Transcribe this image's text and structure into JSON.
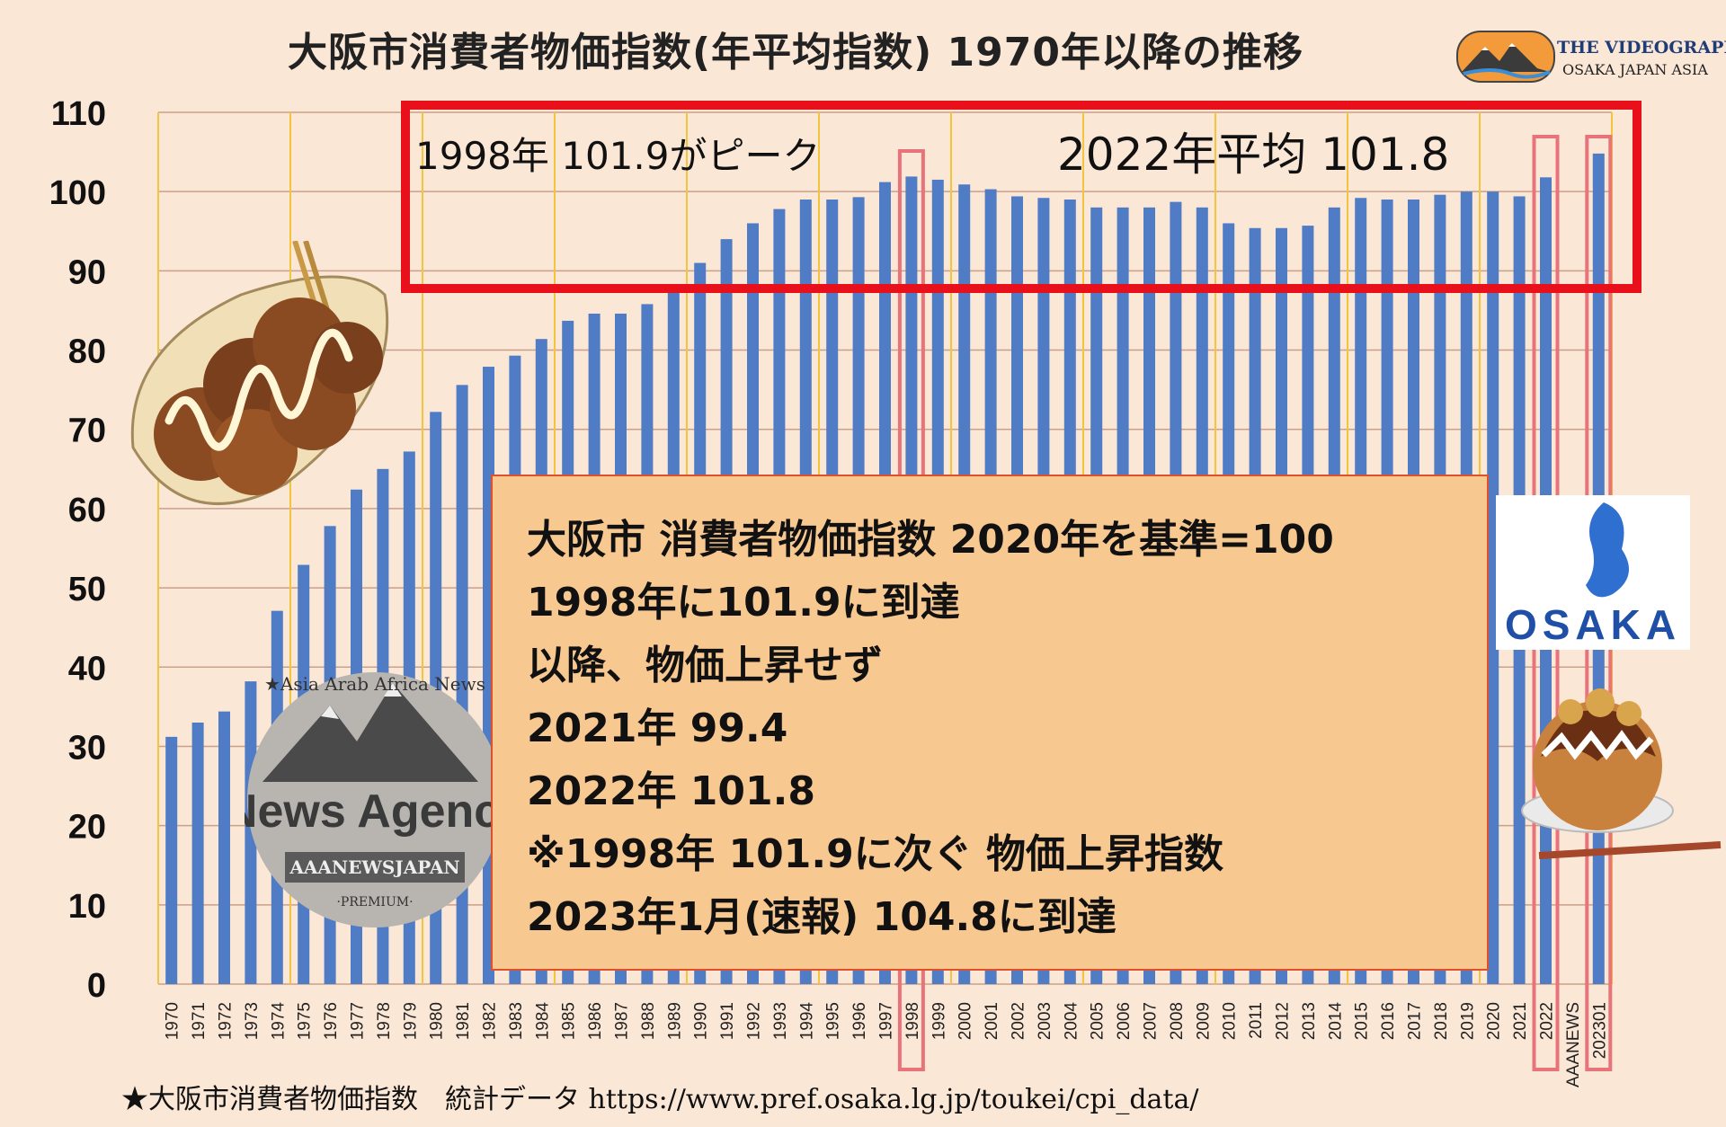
{
  "title": "大阪市消費者物価指数(年平均指数) 1970年以降の推移",
  "logo": {
    "line1": "THE VIDEOGRAPHY",
    "line2": "OSAKA JAPAN ASIA"
  },
  "callout_peak": "1998年 101.9がピーク",
  "callout_2022": "2022年平均 101.8",
  "info_lines": [
    "大阪市 消費者物価指数 2020年を基準=100",
    "1998年に101.9に到達",
    "以降、物価上昇せず",
    "2021年 99.4",
    "2022年 101.8",
    "※1998年 101.9に次ぐ 物価上昇指数",
    "2023年1月(速報) 104.8に到達"
  ],
  "footer": "★大阪市消費者物価指数　統計データ https://www.pref.osaka.lg.jp/toukei/cpi_data/",
  "stamp_logo": {
    "arc_text": "★Asia Arab Africa News",
    "main": "News Agency",
    "ribbon": "AAANEWSJAPAN",
    "sub": "·PREMIUM·"
  },
  "osaka_logo": {
    "text": "OSAKA"
  },
  "colors": {
    "background": "#fbe7d6",
    "bar": "#4f7cc4",
    "highlight": "#e8101a",
    "highlight_light": "#e8737a",
    "infobox": "#f8c891",
    "gridline": "#c9a08a",
    "vline": "#f2c53c"
  },
  "chart_data": {
    "type": "bar",
    "title": "大阪市消費者物価指数(年平均指数) 1970年以降の推移",
    "xlabel": "",
    "ylabel": "",
    "ylim": [
      0,
      110
    ],
    "yticks": [
      0,
      10,
      20,
      30,
      40,
      50,
      60,
      70,
      80,
      90,
      100,
      110
    ],
    "grid": true,
    "categories": [
      "1970",
      "1971",
      "1972",
      "1973",
      "1974",
      "1975",
      "1976",
      "1977",
      "1978",
      "1979",
      "1980",
      "1981",
      "1982",
      "1983",
      "1984",
      "1985",
      "1986",
      "1987",
      "1988",
      "1989",
      "1990",
      "1991",
      "1992",
      "1993",
      "1994",
      "1995",
      "1996",
      "1997",
      "1998",
      "1999",
      "2000",
      "2001",
      "2002",
      "2003",
      "2004",
      "2005",
      "2006",
      "2007",
      "2008",
      "2009",
      "2010",
      "2011",
      "2012",
      "2013",
      "2014",
      "2015",
      "2016",
      "2017",
      "2018",
      "2019",
      "2020",
      "2021",
      "2022",
      "AAANEWS",
      "202301"
    ],
    "values": [
      31.2,
      33.0,
      34.4,
      38.2,
      47.1,
      52.9,
      57.8,
      62.4,
      65.0,
      67.2,
      72.2,
      75.6,
      77.9,
      79.3,
      81.4,
      83.7,
      84.6,
      84.6,
      85.8,
      87.5,
      91.0,
      94.0,
      96.0,
      97.8,
      99.0,
      99.0,
      99.3,
      101.2,
      101.9,
      101.5,
      100.9,
      100.3,
      99.4,
      99.2,
      99.0,
      98.0,
      98.0,
      98.0,
      98.7,
      98.0,
      96.0,
      95.4,
      95.4,
      95.7,
      98.0,
      99.2,
      99.0,
      99.0,
      99.6,
      100.0,
      100.0,
      99.4,
      101.8,
      null,
      104.8
    ],
    "highlighted": [
      "1998",
      "2022",
      "202301"
    ]
  }
}
